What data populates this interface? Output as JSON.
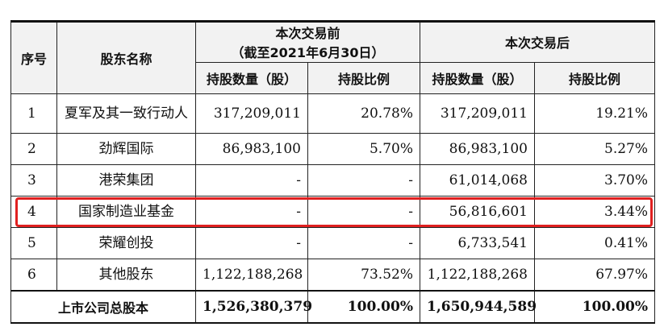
{
  "table": {
    "headers": {
      "seq": "序号",
      "name": "股东名称",
      "before_group": "本次交易前",
      "before_sub": "（截至2021年6月30日）",
      "after_group": "本次交易后",
      "shares": "持股数量（股）",
      "ratio": "持股比例"
    },
    "rows": [
      {
        "seq": "1",
        "name": "夏军及其一致行动人",
        "before_shares": "317,209,011",
        "before_ratio": "20.78%",
        "after_shares": "317,209,011",
        "after_ratio": "19.21%"
      },
      {
        "seq": "2",
        "name": "劲辉国际",
        "before_shares": "86,983,100",
        "before_ratio": "5.70%",
        "after_shares": "86,983,100",
        "after_ratio": "5.27%"
      },
      {
        "seq": "3",
        "name": "港荣集团",
        "before_shares": "-",
        "before_ratio": "-",
        "after_shares": "61,014,068",
        "after_ratio": "3.70%"
      },
      {
        "seq": "4",
        "name": "国家制造业基金",
        "before_shares": "-",
        "before_ratio": "-",
        "after_shares": "56,816,601",
        "after_ratio": "3.44%"
      },
      {
        "seq": "5",
        "name": "荣耀创投",
        "before_shares": "-",
        "before_ratio": "-",
        "after_shares": "6,733,541",
        "after_ratio": "0.41%"
      },
      {
        "seq": "6",
        "name": "其他股东",
        "before_shares": "1,122,188,268",
        "before_ratio": "73.52%",
        "after_shares": "1,122,188,268",
        "after_ratio": "67.97%"
      }
    ],
    "total": {
      "label": "上市公司总股本",
      "before_shares": "1,526,380,379",
      "before_ratio": "100.00%",
      "after_shares": "1,650,944,589",
      "after_ratio": "100.00%"
    }
  },
  "colors": {
    "highlight_border": "#e02020",
    "header_bg": "#f2f2f2"
  }
}
